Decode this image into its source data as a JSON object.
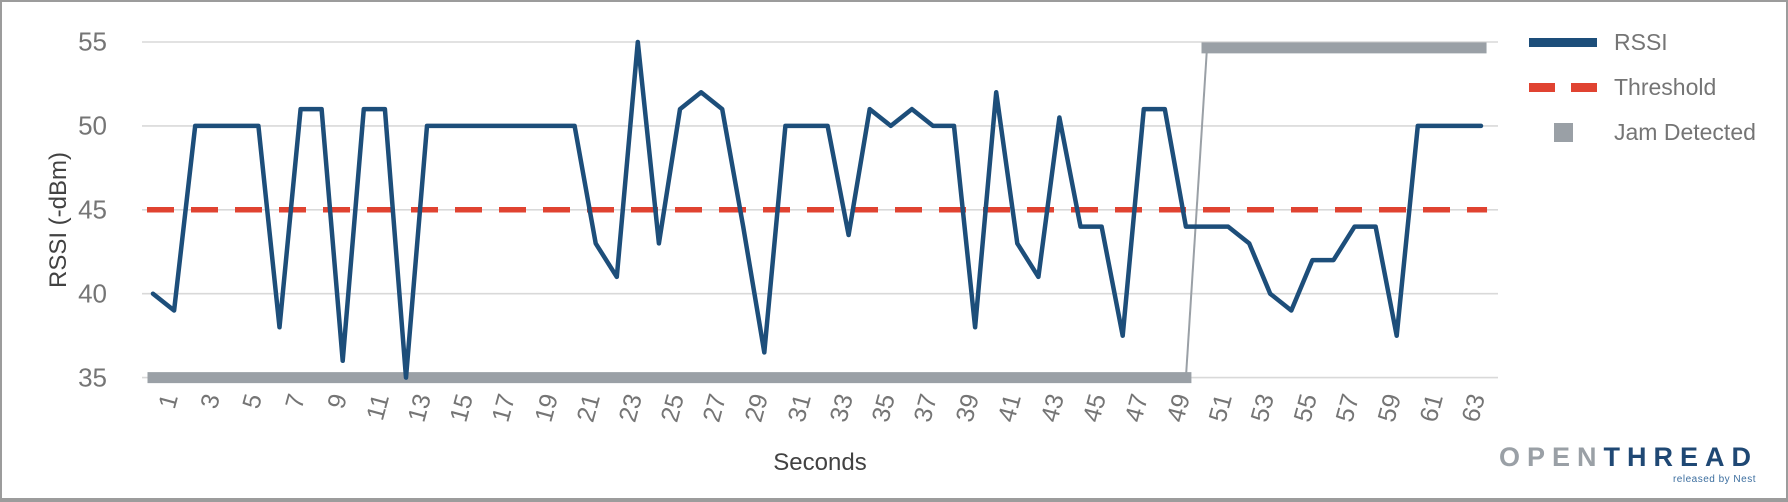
{
  "axes": {
    "y_title": "RSSI (-dBm)",
    "x_title": "Seconds"
  },
  "legend": {
    "items": [
      {
        "label": "RSSI",
        "type": "line",
        "color": "#1d4e7a"
      },
      {
        "label": "Threshold",
        "type": "dashed",
        "color": "#e04331"
      },
      {
        "label": "Jam Detected",
        "type": "square",
        "color": "#9aa0a6"
      }
    ]
  },
  "logo": {
    "part1": "OPEN",
    "part2": "THREAD",
    "tagline": "released by Nest"
  },
  "chart_data": {
    "type": "line",
    "xlabel": "Seconds",
    "ylabel": "RSSI (-dBm)",
    "ylim": [
      35,
      55
    ],
    "y_ticks": [
      35,
      40,
      45,
      50,
      55
    ],
    "x_ticks": [
      1,
      3,
      5,
      7,
      9,
      11,
      13,
      15,
      17,
      19,
      21,
      23,
      25,
      27,
      29,
      31,
      33,
      35,
      37,
      39,
      41,
      43,
      45,
      47,
      49,
      51,
      53,
      55,
      57,
      59,
      61,
      63
    ],
    "grid": "horizontal-only",
    "legend_position": "right",
    "colors": {
      "rssi": "#1d4e7a",
      "threshold": "#e04331",
      "jam": "#9aa0a6",
      "gridline": "#d9d9d9"
    },
    "series": [
      {
        "name": "RSSI",
        "x_start": 1,
        "values": [
          40,
          39,
          50,
          50,
          50,
          50,
          38,
          51,
          51,
          36,
          51,
          51,
          35,
          50,
          50,
          50,
          50,
          50,
          50,
          50,
          50,
          43,
          41,
          55,
          43,
          51,
          52,
          51,
          44,
          36.5,
          50,
          50,
          50,
          43.5,
          51,
          50,
          51,
          50,
          50,
          38,
          52,
          43,
          41,
          50.5,
          44,
          44,
          37.5,
          51,
          51,
          44,
          44,
          44,
          43,
          40,
          39,
          42,
          42,
          44,
          44,
          37.5,
          50,
          50,
          50,
          50
        ]
      },
      {
        "name": "Threshold",
        "value": 45,
        "x_range": [
          1,
          64
        ]
      },
      {
        "name": "Jam Detected",
        "low_value": 35,
        "low_x_range": [
          1,
          50
        ],
        "high_value": 54.65,
        "high_x_range": [
          51,
          64
        ]
      }
    ]
  }
}
